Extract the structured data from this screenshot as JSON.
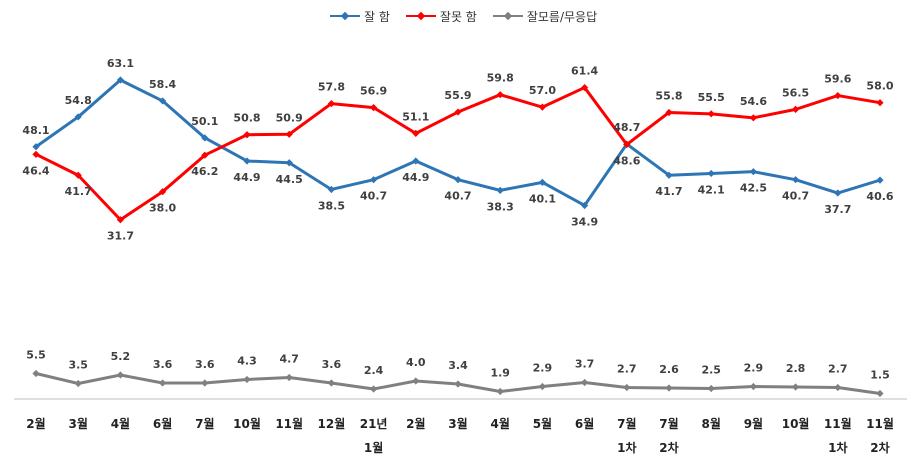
{
  "chart_data": {
    "type": "line",
    "title": "",
    "xlabel": "",
    "ylabel": "",
    "legend_position": "top-center",
    "grid": false,
    "categories": [
      [
        "2월"
      ],
      [
        "3월"
      ],
      [
        "4월"
      ],
      [
        "6월"
      ],
      [
        "7월"
      ],
      [
        "10월"
      ],
      [
        "11월"
      ],
      [
        "12월"
      ],
      [
        "21년",
        "1월"
      ],
      [
        "2월"
      ],
      [
        "3월"
      ],
      [
        "4월"
      ],
      [
        "5월"
      ],
      [
        "6월"
      ],
      [
        "7월",
        "1차"
      ],
      [
        "7월",
        "2차"
      ],
      [
        "8월"
      ],
      [
        "9월"
      ],
      [
        "10월"
      ],
      [
        "11월",
        "1차"
      ],
      [
        "11월",
        "2차"
      ]
    ],
    "series": [
      {
        "name": "잘 함",
        "color": "#2E75B6",
        "values": [
          48.1,
          54.8,
          63.1,
          58.4,
          50.1,
          44.9,
          44.5,
          38.5,
          40.7,
          44.9,
          40.7,
          38.3,
          40.1,
          34.9,
          48.7,
          41.7,
          42.1,
          42.5,
          40.7,
          37.7,
          40.6
        ]
      },
      {
        "name": "잘못 함",
        "color": "#FF0000",
        "values": [
          46.4,
          41.7,
          31.7,
          38.0,
          46.2,
          50.8,
          50.9,
          57.8,
          56.9,
          51.1,
          55.9,
          59.8,
          57.0,
          61.4,
          48.6,
          55.8,
          55.5,
          54.6,
          56.5,
          59.6,
          58.0
        ]
      },
      {
        "name": "잘모름/무응답",
        "color": "#808080",
        "values": [
          5.5,
          3.5,
          5.2,
          3.6,
          3.6,
          4.3,
          4.7,
          3.6,
          2.4,
          4.0,
          3.4,
          1.9,
          2.9,
          3.7,
          2.7,
          2.6,
          2.5,
          2.9,
          2.8,
          2.7,
          1.5
        ]
      }
    ]
  }
}
